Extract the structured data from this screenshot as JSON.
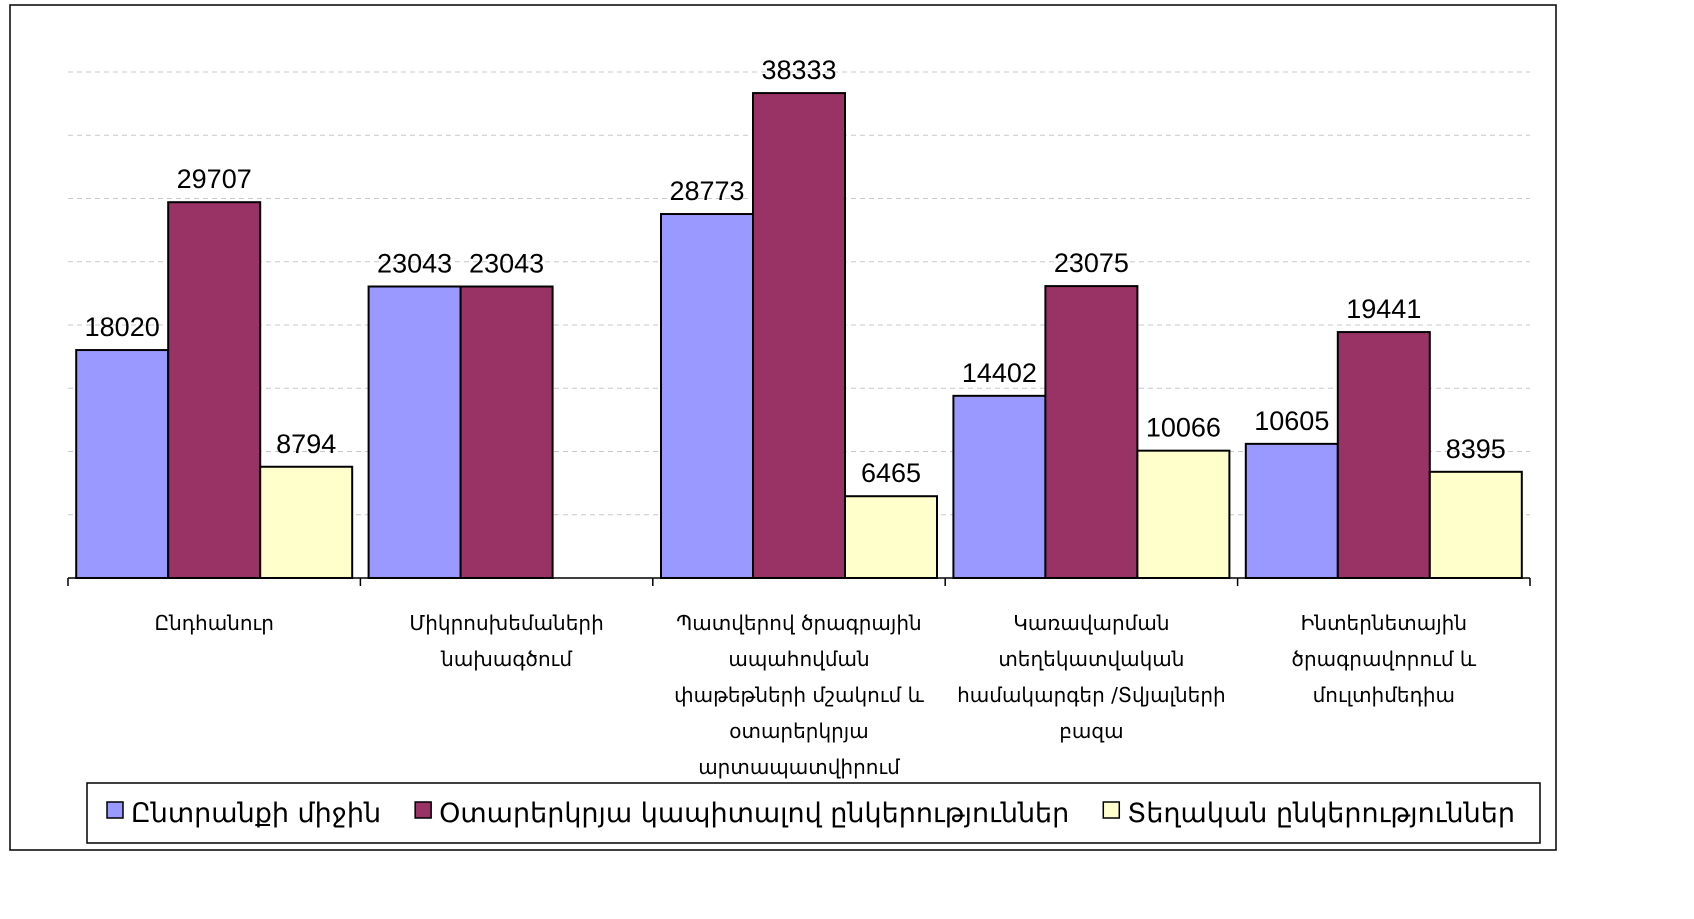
{
  "chart_data": {
    "type": "bar",
    "categories": [
      "Ընդհանուր",
      "Միկրոսխեմաների նախագծում",
      "Պատվերով ծրագրային ապահովման փաթեթների մշակում և օտարերկրյա արտապատվիրում",
      "Կառավարման տեղեկատվական համակարգեր /Տվյալների բազա",
      "Ինտերնետային ծրագրավորում և մուլտիմեդիա"
    ],
    "series": [
      {
        "name": "Ընտրանքի միջին",
        "color": "#9999ff",
        "values": [
          18020,
          23043,
          28773,
          14402,
          10605
        ]
      },
      {
        "name": "Օտարերկրյա կապիտալով ընկերություններ",
        "color": "#993366",
        "values": [
          29707,
          23043,
          38333,
          23075,
          19441
        ]
      },
      {
        "name": "Տեղական ընկերություններ",
        "color": "#ffffcc",
        "values": [
          8794,
          null,
          6465,
          10066,
          8395
        ]
      }
    ],
    "ylim": [
      0,
      40000
    ],
    "yticks": [
      0,
      5000,
      10000,
      15000,
      20000,
      25000,
      30000,
      35000,
      40000
    ],
    "grid": true,
    "legend": "bottom"
  }
}
